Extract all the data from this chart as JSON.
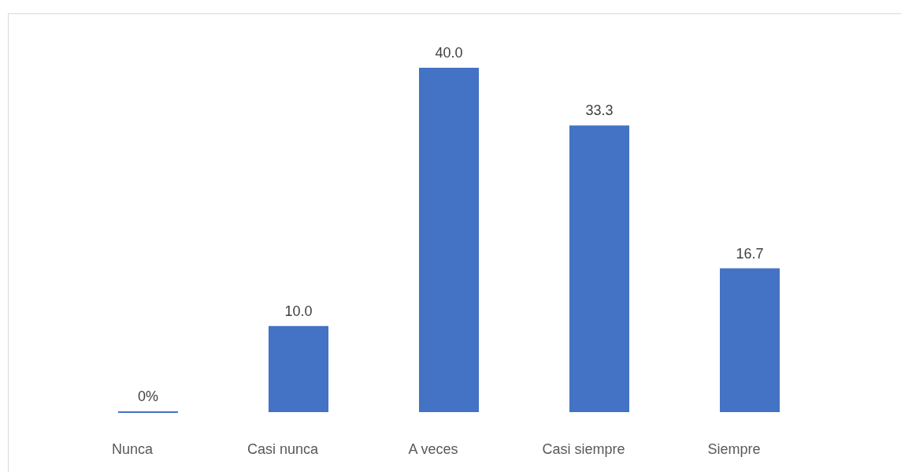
{
  "chart_data": {
    "type": "bar",
    "categories": [
      "Nunca",
      "Casi nunca",
      "A veces",
      "Casi siempre",
      "Siempre"
    ],
    "values": [
      0,
      10.0,
      40.0,
      33.3,
      16.7
    ],
    "value_labels": [
      "0%",
      "10.0",
      "40.0",
      "33.3",
      "16.7"
    ],
    "color": "#4472c4",
    "tick_labels": "x"
  }
}
